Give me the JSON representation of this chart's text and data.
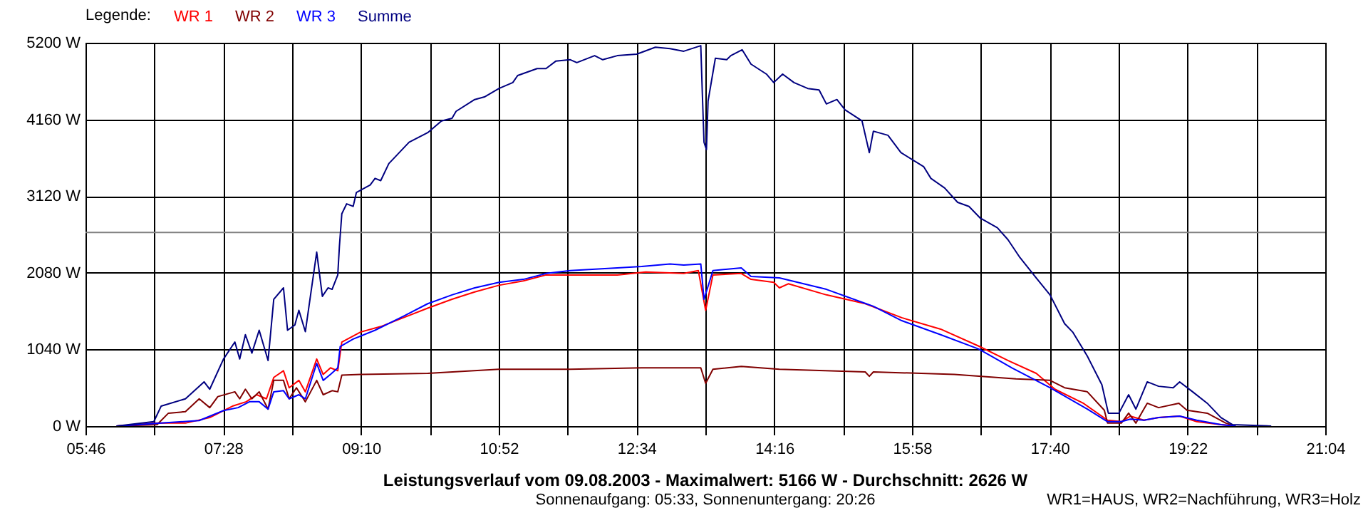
{
  "chart_data": {
    "type": "line",
    "title": "Leistungsverlauf vom 09.08.2003 - Maximalwert: 5166 W - Durchschnitt: 2626 W",
    "subtitle": "Sonnenaufgang: 05:33, Sonnenuntergang: 20:26",
    "legend_title": "Legende:",
    "annotations": [
      "WR1=HAUS, WR2=Nachführung, WR3=Holz"
    ],
    "xlim": [
      5.7667,
      21.0667
    ],
    "xticks": [
      {
        "value": 5.7667,
        "label": "05:46"
      },
      {
        "value": 6.6167,
        "label": null
      },
      {
        "value": 7.4667,
        "label": "07:28"
      },
      {
        "value": 8.3167,
        "label": null
      },
      {
        "value": 9.1667,
        "label": "09:10"
      },
      {
        "value": 10.0167,
        "label": null
      },
      {
        "value": 10.8667,
        "label": "10:52"
      },
      {
        "value": 11.7167,
        "label": null
      },
      {
        "value": 12.5667,
        "label": "12:34"
      },
      {
        "value": 13.4167,
        "label": null
      },
      {
        "value": 14.2667,
        "label": "14:16"
      },
      {
        "value": 15.1167,
        "label": null
      },
      {
        "value": 15.9667,
        "label": "15:58"
      },
      {
        "value": 16.8167,
        "label": null
      },
      {
        "value": 17.6667,
        "label": "17:40"
      },
      {
        "value": 18.5167,
        "label": null
      },
      {
        "value": 19.3667,
        "label": "19:22"
      },
      {
        "value": 20.2167,
        "label": null
      },
      {
        "value": 21.0667,
        "label": "21:04"
      }
    ],
    "ylim": [
      0,
      5200
    ],
    "yticks": [
      {
        "value": 0,
        "label": "0 W"
      },
      {
        "value": 1040,
        "label": "1040 W"
      },
      {
        "value": 2080,
        "label": "2080 W"
      },
      {
        "value": 3120,
        "label": "3120 W"
      },
      {
        "value": 4160,
        "label": "4160 W"
      },
      {
        "value": 5200,
        "label": "5200 W"
      }
    ],
    "grid": true,
    "legend": "top left",
    "ref_lines": [
      {
        "axis": "y",
        "value": 2626,
        "color": "#808080"
      }
    ],
    "series": [
      {
        "name": "WR 1",
        "color": "#ff0000",
        "x": [
          6.15,
          6.65,
          7.0,
          7.3,
          7.58,
          7.75,
          7.88,
          8.0,
          8.09,
          8.21,
          8.28,
          8.4,
          8.48,
          8.62,
          8.7,
          8.79,
          8.88,
          8.93,
          9.16,
          9.41,
          9.69,
          9.99,
          10.29,
          10.57,
          10.87,
          11.17,
          11.45,
          12.33,
          12.68,
          13.15,
          13.33,
          13.42,
          13.51,
          13.86,
          13.98,
          14.26,
          14.33,
          14.44,
          14.91,
          15.39,
          15.84,
          16.32,
          16.79,
          17.15,
          17.5,
          17.73,
          18.08,
          18.38,
          18.55,
          18.66,
          18.83,
          19.01,
          19.27,
          19.48,
          19.78,
          19.96
        ],
        "values": [
          0,
          40,
          40,
          115,
          270,
          330,
          425,
          370,
          660,
          750,
          520,
          620,
          465,
          910,
          700,
          790,
          750,
          1140,
          1275,
          1350,
          1470,
          1600,
          1720,
          1820,
          1910,
          1970,
          2050,
          2050,
          2090,
          2070,
          2110,
          1570,
          2050,
          2070,
          1990,
          1950,
          1875,
          1930,
          1780,
          1660,
          1470,
          1315,
          1085,
          890,
          715,
          500,
          310,
          80,
          60,
          135,
          80,
          115,
          135,
          60,
          20,
          0
        ]
      },
      {
        "name": "WR 2",
        "color": "#800000",
        "x": [
          6.15,
          6.65,
          6.79,
          7.0,
          7.17,
          7.3,
          7.4,
          7.61,
          7.67,
          7.74,
          7.82,
          7.91,
          8.02,
          8.09,
          8.21,
          8.28,
          8.37,
          8.48,
          8.62,
          8.7,
          8.81,
          8.88,
          8.93,
          9.16,
          9.99,
          10.87,
          11.75,
          12.63,
          13.36,
          13.42,
          13.51,
          13.86,
          14.33,
          15.39,
          15.44,
          15.49,
          16.49,
          17.25,
          17.67,
          17.85,
          18.13,
          18.34,
          18.38,
          18.55,
          18.64,
          18.73,
          18.82,
          18.87,
          19.01,
          19.26,
          19.36,
          19.61,
          19.84,
          19.96
        ],
        "values": [
          0,
          20,
          175,
          195,
          370,
          250,
          400,
          465,
          370,
          500,
          370,
          465,
          230,
          620,
          620,
          370,
          520,
          330,
          620,
          425,
          480,
          465,
          690,
          700,
          715,
          770,
          770,
          790,
          790,
          580,
          770,
          810,
          770,
          735,
          675,
          735,
          700,
          640,
          620,
          520,
          465,
          215,
          40,
          40,
          175,
          40,
          215,
          310,
          250,
          310,
          215,
          175,
          40,
          0
        ]
      },
      {
        "name": "WR 3",
        "color": "#0000ff",
        "x": [
          6.15,
          6.7,
          7.17,
          7.47,
          7.65,
          7.79,
          7.91,
          8.02,
          8.09,
          8.21,
          8.28,
          8.4,
          8.48,
          8.62,
          8.7,
          8.79,
          8.88,
          8.91,
          9.07,
          9.34,
          9.69,
          9.99,
          10.29,
          10.57,
          10.87,
          11.17,
          11.45,
          11.75,
          12.33,
          12.63,
          12.98,
          13.15,
          13.36,
          13.4,
          13.51,
          13.86,
          13.98,
          14.33,
          14.91,
          15.4,
          15.49,
          15.84,
          16.32,
          16.79,
          17.2,
          17.67,
          18.13,
          18.38,
          18.55,
          18.66,
          18.83,
          19.01,
          19.27,
          19.48,
          19.78,
          19.96
        ],
        "values": [
          0,
          40,
          75,
          210,
          250,
          330,
          330,
          230,
          465,
          480,
          370,
          425,
          370,
          850,
          620,
          700,
          790,
          1080,
          1180,
          1300,
          1490,
          1660,
          1780,
          1875,
          1950,
          1990,
          2070,
          2110,
          2145,
          2165,
          2200,
          2185,
          2200,
          1720,
          2110,
          2145,
          2030,
          2010,
          1855,
          1660,
          1625,
          1430,
          1240,
          1045,
          790,
          520,
          230,
          60,
          60,
          95,
          80,
          115,
          135,
          80,
          20,
          0
        ]
      },
      {
        "name": "Summe",
        "color": "#000080",
        "x": [
          6.15,
          6.61,
          6.7,
          7.0,
          7.23,
          7.3,
          7.47,
          7.61,
          7.67,
          7.74,
          7.82,
          7.91,
          8.02,
          8.09,
          8.21,
          8.26,
          8.35,
          8.4,
          8.48,
          8.55,
          8.62,
          8.69,
          8.76,
          8.81,
          8.88,
          8.9,
          8.93,
          8.99,
          9.07,
          9.11,
          9.28,
          9.34,
          9.41,
          9.51,
          9.76,
          9.99,
          10.16,
          10.29,
          10.34,
          10.57,
          10.69,
          10.87,
          11.04,
          11.1,
          11.34,
          11.45,
          11.57,
          11.75,
          11.83,
          12.05,
          12.15,
          12.33,
          12.57,
          12.8,
          12.98,
          13.15,
          13.36,
          13.38,
          13.4,
          13.43,
          13.45,
          13.54,
          13.68,
          13.73,
          13.87,
          13.98,
          14.17,
          14.26,
          14.37,
          14.51,
          14.68,
          14.82,
          14.91,
          15.04,
          15.14,
          15.35,
          15.44,
          15.49,
          15.67,
          15.83,
          16.11,
          16.2,
          16.37,
          16.53,
          16.67,
          16.81,
          17.02,
          17.15,
          17.29,
          17.5,
          17.67,
          17.85,
          17.95,
          18.13,
          18.31,
          18.39,
          18.52,
          18.64,
          18.73,
          18.87,
          19.01,
          19.19,
          19.27,
          19.43,
          19.61,
          19.78,
          19.92,
          20.4
        ],
        "values": [
          0,
          60,
          270,
          370,
          600,
          500,
          910,
          1140,
          910,
          1240,
          990,
          1300,
          890,
          1720,
          1875,
          1300,
          1370,
          1570,
          1280,
          1820,
          2360,
          1760,
          1875,
          1855,
          2050,
          2435,
          2880,
          3015,
          2980,
          3170,
          3270,
          3360,
          3330,
          3560,
          3850,
          3980,
          4140,
          4175,
          4270,
          4430,
          4465,
          4580,
          4660,
          4755,
          4850,
          4850,
          4950,
          4970,
          4930,
          5025,
          4970,
          5025,
          5045,
          5140,
          5120,
          5085,
          5160,
          4485,
          3850,
          3750,
          4410,
          4990,
          4970,
          5025,
          5105,
          4910,
          4775,
          4660,
          4775,
          4660,
          4580,
          4560,
          4370,
          4430,
          4290,
          4140,
          3710,
          4000,
          3945,
          3710,
          3520,
          3360,
          3230,
          3035,
          2980,
          2820,
          2690,
          2530,
          2300,
          2010,
          1780,
          1390,
          1275,
          950,
          560,
          175,
          175,
          425,
          230,
          600,
          540,
          520,
          600,
          465,
          310,
          115,
          20,
          0
        ]
      }
    ]
  }
}
